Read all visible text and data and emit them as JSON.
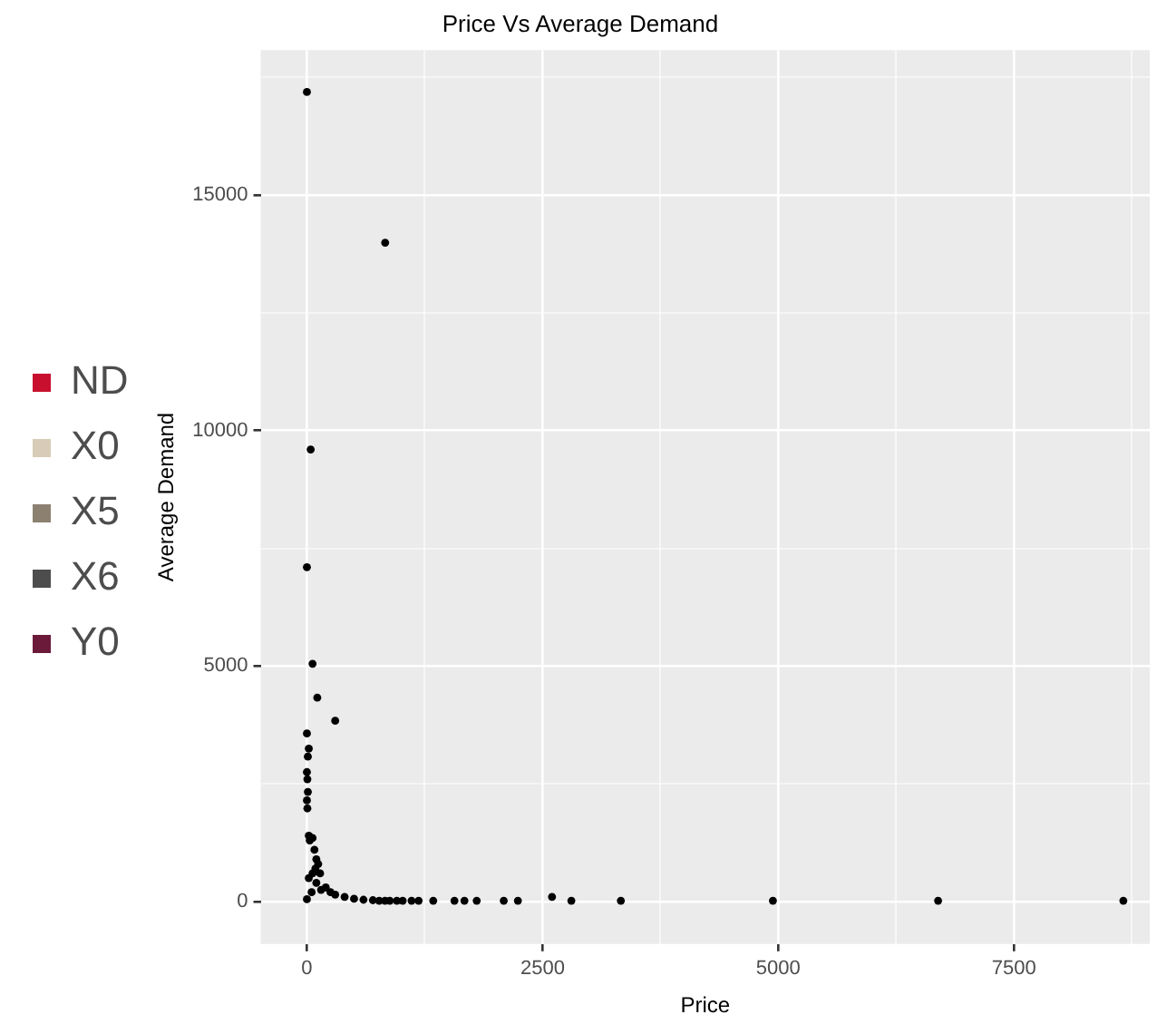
{
  "chart_data": {
    "type": "scatter",
    "title": "Price Vs Average Demand",
    "xlabel": "Price",
    "ylabel": "Average Demand",
    "xlim": [
      -490,
      8940
    ],
    "ylim": [
      -900,
      18080
    ],
    "xticks": [
      0,
      {
        "value": 1250,
        "label": null
      },
      2500,
      {
        "value": 3750,
        "label": null
      },
      5000,
      {
        "value": 6250,
        "label": null
      },
      7500,
      {
        "value": 8750,
        "label": null
      }
    ],
    "yticks": [
      0,
      {
        "value": 2500,
        "label": null
      },
      5000,
      {
        "value": 7500,
        "label": null
      },
      10000,
      {
        "value": 12500,
        "label": null
      },
      15000,
      {
        "value": 17500,
        "label": null
      }
    ],
    "grid": true,
    "legend": "left",
    "marker": "circle",
    "series": [
      {
        "color": "#000000",
        "x": [
          0,
          830,
          40,
          0,
          60,
          110,
          300,
          0,
          20,
          10,
          0,
          5,
          10,
          0,
          5,
          20,
          30,
          60,
          80,
          100,
          120,
          90,
          140,
          60,
          20,
          100,
          200,
          150,
          250,
          300,
          400,
          500,
          600,
          700,
          50,
          0,
          767,
          829,
          879,
          954,
          1016,
          1110,
          1185,
          1340,
          1565,
          1671,
          1801,
          2088,
          2238,
          2600,
          2805,
          3330,
          4943,
          6695,
          8660
        ],
        "values": [
          17190,
          13990,
          9600,
          7100,
          5050,
          4330,
          3840,
          3570,
          3250,
          3080,
          2750,
          2600,
          2330,
          2150,
          1980,
          1400,
          1300,
          1350,
          1100,
          900,
          800,
          700,
          600,
          600,
          500,
          400,
          300,
          250,
          200,
          150,
          100,
          60,
          40,
          30,
          200,
          50,
          20,
          20,
          20,
          20,
          20,
          20,
          20,
          20,
          20,
          20,
          20,
          20,
          20,
          100,
          20,
          20,
          20,
          20,
          20
        ]
      },
      {
        "name": "ND",
        "color": "#c8102e"
      },
      {
        "name": "X0",
        "color": "#d8cbb8"
      },
      {
        "name": "X5",
        "color": "#8c8070"
      },
      {
        "name": "X6",
        "color": "#4d4d4d"
      },
      {
        "name": "Y0",
        "color": "#6b1a3a"
      }
    ]
  }
}
